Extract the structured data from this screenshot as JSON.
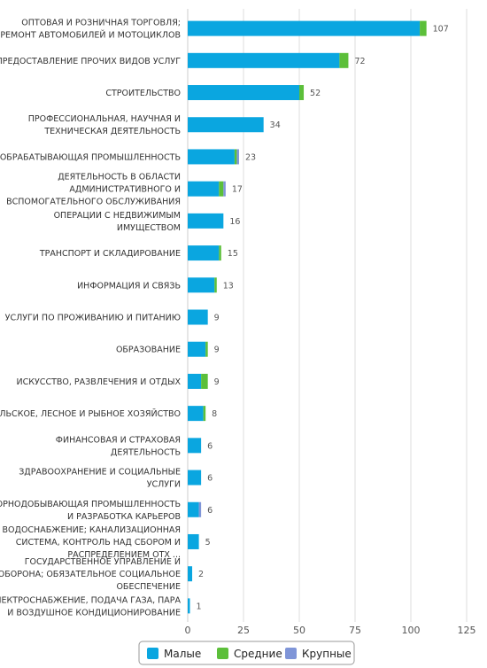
{
  "chart_data": {
    "type": "bar",
    "orientation": "horizontal",
    "stacked": true,
    "categories": [
      "ОПТОВАЯ И РОЗНИЧНАЯ ТОРГОВЛЯ; РЕМОНТ АВТОМОБИЛЕЙ И МОТОЦИКЛОВ",
      "ПРЕДОСТАВЛЕНИЕ ПРОЧИХ ВИДОВ УСЛУГ",
      "СТРОИТЕЛЬСТВО",
      "ПРОФЕССИОНАЛЬНАЯ, НАУЧНАЯ И ТЕХНИЧЕСКАЯ ДЕЯТЕЛЬНОСТЬ",
      "ОБРАБАТЫВАЮЩАЯ ПРОМЫШЛЕННОСТЬ",
      "ДЕЯТЕЛЬНОСТЬ В ОБЛАСТИ АДМИНИСТРАТИВНОГО И ВСПОМОГАТЕЛЬНОГО ОБСЛУЖИВАНИЯ",
      "ОПЕРАЦИИ С НЕДВИЖИМЫМ ИМУЩЕСТВОМ",
      "ТРАНСПОРТ И СКЛАДИРОВАНИЕ",
      "ИНФОРМАЦИЯ И СВЯЗЬ",
      "УСЛУГИ ПО ПРОЖИВАНИЮ И ПИТАНИЮ",
      "ОБРАЗОВАНИЕ",
      "ИСКУССТВО, РАЗВЛЕЧЕНИЯ И ОТДЫХ",
      "СЕЛЬСКОЕ, ЛЕСНОЕ И РЫБНОЕ ХОЗЯЙСТВО",
      "ФИНАНСОВАЯ И СТРАХОВАЯ ДЕЯТЕЛЬНОСТЬ",
      "ЗДРАВООХРАНЕНИЕ И СОЦИАЛЬНЫЕ УСЛУГИ",
      "ГОРНОДОБЫВАЮЩАЯ ПРОМЫШЛЕННОСТЬ И РАЗРАБОТКА КАРЬЕРОВ",
      "ВОДОСНАБЖЕНИЕ; КАНАЛИЗАЦИОННАЯ СИСТЕМА, КОНТРОЛЬ НАД СБОРОМ И РАСПРЕДЕЛЕНИЕМ ОТХ ...",
      "ГОСУДАРСТВЕННОЕ УПРАВЛЕНИЕ И ОБОРОНА; ОБЯЗАТЕЛЬНОЕ СОЦИАЛЬНОЕ ОБЕСПЕЧЕНИЕ",
      "ЭЛЕКТРОСНАБЖЕНИЕ, ПОДАЧА ГАЗА, ПАРА И ВОЗДУШНОЕ КОНДИЦИОНИРОВАНИЕ"
    ],
    "category_lines": [
      [
        "ОПТОВАЯ И РОЗНИЧНАЯ ТОРГОВЛЯ;",
        "РЕМОНТ АВТОМОБИЛЕЙ И МОТОЦИКЛОВ"
      ],
      [
        "ПРЕДОСТАВЛЕНИЕ ПРОЧИХ ВИДОВ УСЛУГ"
      ],
      [
        "СТРОИТЕЛЬСТВО"
      ],
      [
        "ПРОФЕССИОНАЛЬНАЯ, НАУЧНАЯ И",
        "ТЕХНИЧЕСКАЯ ДЕЯТЕЛЬНОСТЬ"
      ],
      [
        "ОБРАБАТЫВАЮЩАЯ ПРОМЫШЛЕННОСТЬ"
      ],
      [
        "ДЕЯТЕЛЬНОСТЬ В ОБЛАСТИ",
        "АДМИНИСТРАТИВНОГО И",
        "ВСПОМОГАТЕЛЬНОГО ОБСЛУЖИВАНИЯ"
      ],
      [
        "ОПЕРАЦИИ С НЕДВИЖИМЫМ",
        "ИМУЩЕСТВОМ"
      ],
      [
        "ТРАНСПОРТ И СКЛАДИРОВАНИЕ"
      ],
      [
        "ИНФОРМАЦИЯ И СВЯЗЬ"
      ],
      [
        "УСЛУГИ ПО ПРОЖИВАНИЮ И ПИТАНИЮ"
      ],
      [
        "ОБРАЗОВАНИЕ"
      ],
      [
        "ИСКУССТВО, РАЗВЛЕЧЕНИЯ И ОТДЫХ"
      ],
      [
        "СЕЛЬСКОЕ, ЛЕСНОЕ И РЫБНОЕ ХОЗЯЙСТВО"
      ],
      [
        "ФИНАНСОВАЯ И СТРАХОВАЯ",
        "ДЕЯТЕЛЬНОСТЬ"
      ],
      [
        "ЗДРАВООХРАНЕНИЕ И СОЦИАЛЬНЫЕ",
        "УСЛУГИ"
      ],
      [
        "ГОРНОДОБЫВАЮЩАЯ ПРОМЫШЛЕННОСТЬ",
        "И РАЗРАБОТКА КАРЬЕРОВ"
      ],
      [
        "ВОДОСНАБЖЕНИЕ; КАНАЛИЗАЦИОННАЯ",
        "СИСТЕМА, КОНТРОЛЬ НАД СБОРОМ И",
        "РАСПРЕДЕЛЕНИЕМ ОТХ ..."
      ],
      [
        "ГОСУДАРСТВЕННОЕ УПРАВЛЕНИЕ И",
        "ОБОРОНА; ОБЯЗАТЕЛЬНОЕ СОЦИАЛЬНОЕ",
        "ОБЕСПЕЧЕНИЕ"
      ],
      [
        "ЭЛЕКТРОСНАБЖЕНИЕ, ПОДАЧА ГАЗА, ПАРА",
        "И ВОЗДУШНОЕ КОНДИЦИОНИРОВАНИЕ"
      ]
    ],
    "series": [
      {
        "name": "Малые",
        "color": "#0aa6e0",
        "values": [
          104,
          68,
          50,
          34,
          21,
          14,
          16,
          14,
          12,
          9,
          8,
          6,
          7,
          6,
          6,
          5,
          5,
          2,
          1
        ]
      },
      {
        "name": "Средние",
        "color": "#5cbf3a",
        "values": [
          3,
          4,
          2,
          0,
          1,
          2,
          0,
          1,
          1,
          0,
          1,
          3,
          1,
          0,
          0,
          0,
          0,
          0,
          0
        ]
      },
      {
        "name": "Крупные",
        "color": "#7f95d8",
        "values": [
          0,
          0,
          0,
          0,
          1,
          1,
          0,
          0,
          0,
          0,
          0,
          0,
          0,
          0,
          0,
          1,
          0,
          0,
          0
        ]
      }
    ],
    "totals": [
      107,
      72,
      52,
      34,
      23,
      17,
      16,
      15,
      13,
      9,
      9,
      9,
      8,
      6,
      6,
      6,
      5,
      2,
      1
    ],
    "xlim": [
      0,
      125
    ],
    "xticks": [
      0,
      25,
      50,
      75,
      100,
      125
    ],
    "grid": true,
    "legend_position": "bottom-center",
    "title": "",
    "xlabel": "",
    "ylabel": ""
  }
}
